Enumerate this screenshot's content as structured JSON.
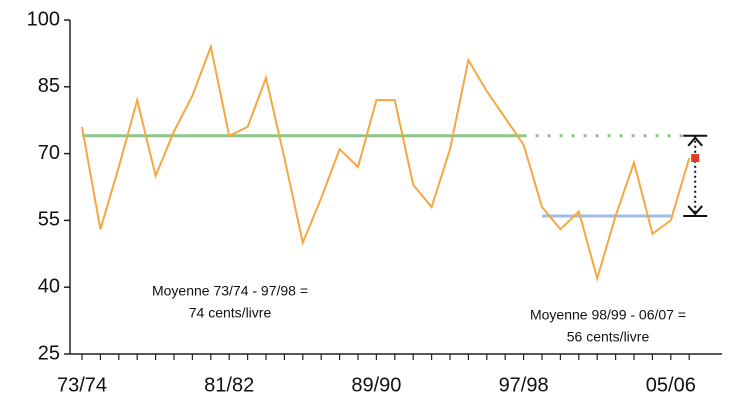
{
  "chart_data": {
    "type": "line",
    "categories": [
      "73/74",
      null,
      null,
      null,
      null,
      null,
      null,
      null,
      "81/82",
      null,
      null,
      null,
      null,
      null,
      null,
      null,
      "89/90",
      null,
      null,
      null,
      null,
      null,
      null,
      null,
      "97/98",
      null,
      null,
      null,
      null,
      null,
      null,
      null,
      "05/06",
      null
    ],
    "series": [
      {
        "color": "#f5a742",
        "values": [
          76,
          53,
          67,
          82,
          65,
          75,
          83,
          94,
          74,
          76,
          87,
          69,
          50,
          60,
          71,
          67,
          82,
          82,
          63,
          58,
          71,
          91,
          84,
          78,
          72,
          58,
          53,
          57,
          42,
          56,
          68,
          52,
          55,
          69
        ]
      }
    ],
    "ylim": [
      25,
      100
    ],
    "yticks": [
      25,
      40,
      55,
      70,
      85,
      100
    ],
    "averages": [
      {
        "value": 74,
        "color": "#8cc68c",
        "from": 0,
        "to": 24,
        "extend": 33,
        "text": [
          "Moyenne 73/74 - 97/98 =",
          "74 cents/livre"
        ]
      },
      {
        "value": 56,
        "color": "#9dbde8",
        "from": 25,
        "to": 32,
        "text": [
          "Moyenne 98/99 - 06/07 =",
          "56 cents/livre"
        ]
      }
    ],
    "highlight_color": "#e03a2a"
  }
}
